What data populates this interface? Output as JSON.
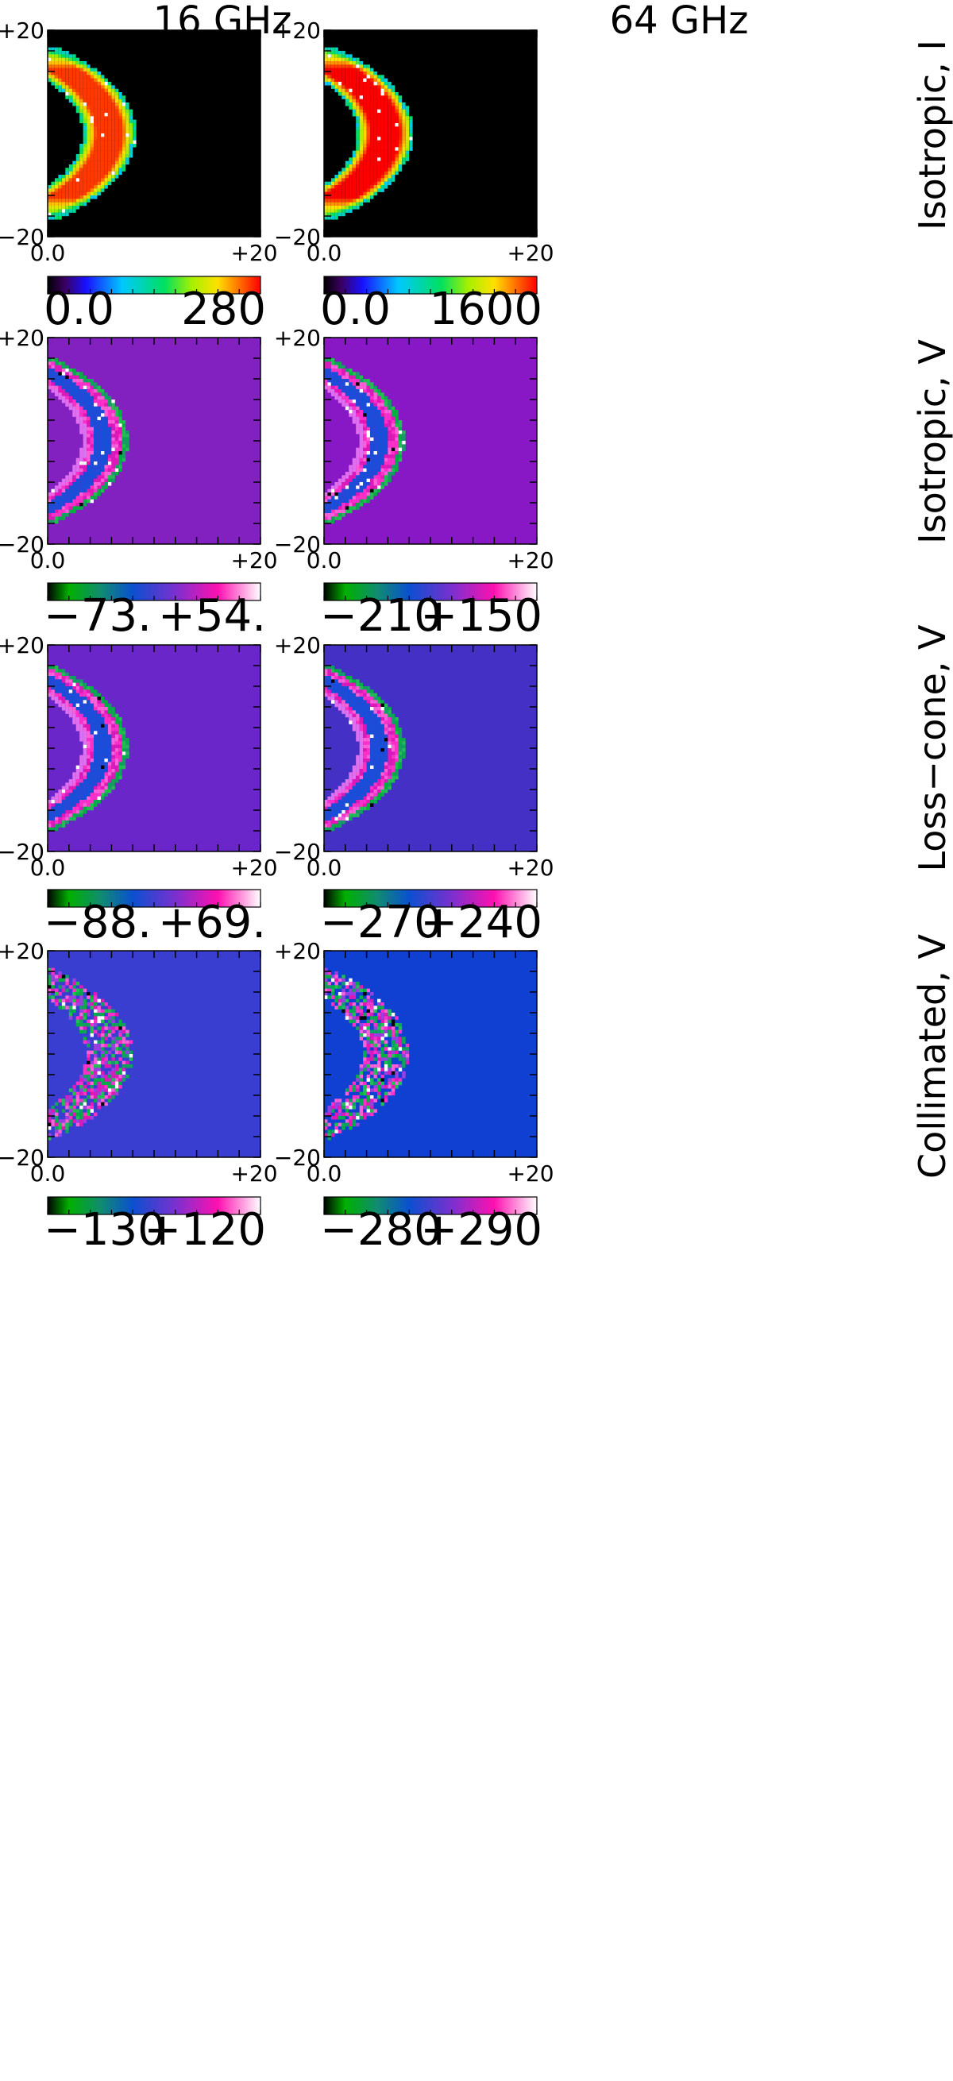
{
  "columns": [
    "16 GHz",
    "64 GHz"
  ],
  "chart_data": [
    {
      "type": "heatmap",
      "row": "Isotropic, I",
      "column": "16 GHz",
      "x_ticks": [
        "0.0",
        "+20"
      ],
      "y_ticks": [
        "+20",
        "−20"
      ],
      "x_range": [
        0,
        20
      ],
      "y_range": [
        -20,
        20
      ],
      "colorbar": {
        "scale": "rainbow",
        "min_label": "0.0",
        "max_label": "280",
        "min": 0,
        "max": 280
      },
      "background_color": "#000000",
      "features": {
        "arc_type": "intensity",
        "inner": 2.5,
        "outer": 5.0,
        "peak_fraction": 0.95
      }
    },
    {
      "type": "heatmap",
      "row": "Isotropic, I",
      "column": "64 GHz",
      "x_ticks": [
        "0.0",
        "+20"
      ],
      "y_ticks": [
        "+20",
        "−20"
      ],
      "x_range": [
        0,
        20
      ],
      "y_range": [
        -20,
        20
      ],
      "colorbar": {
        "scale": "rainbow",
        "min_label": "0.0",
        "max_label": "1600",
        "min": 0,
        "max": 1600
      },
      "background_color": "#000000",
      "features": {
        "arc_type": "intensity",
        "inner": 2.7,
        "outer": 5.2,
        "peak_fraction": 1.0
      }
    },
    {
      "type": "heatmap",
      "row": "Isotropic, V",
      "column": "16 GHz",
      "x_ticks": [
        "0.0",
        "+20"
      ],
      "y_ticks": [
        "+20",
        "−20"
      ],
      "x_range": [
        0,
        20
      ],
      "y_range": [
        -20,
        20
      ],
      "colorbar": {
        "scale": "green-blue-magenta-white",
        "min_label": "−73.",
        "max_label": "+54.",
        "min": -73,
        "max": 54
      },
      "background_color": "#8220c0",
      "features": {
        "arc_type": "banded"
      }
    },
    {
      "type": "heatmap",
      "row": "Isotropic, V",
      "column": "64 GHz",
      "x_ticks": [
        "0.0",
        "+20"
      ],
      "y_ticks": [
        "+20",
        "−20"
      ],
      "x_range": [
        0,
        20
      ],
      "y_range": [
        -20,
        20
      ],
      "colorbar": {
        "scale": "green-blue-magenta-white",
        "min_label": "−210",
        "max_label": "+150",
        "min": -210,
        "max": 150
      },
      "background_color": "#8818c6",
      "features": {
        "arc_type": "banded"
      }
    },
    {
      "type": "heatmap",
      "row": "Loss−cone, V",
      "column": "16 GHz",
      "x_ticks": [
        "0.0",
        "+20"
      ],
      "y_ticks": [
        "+20",
        "−20"
      ],
      "x_range": [
        0,
        20
      ],
      "y_range": [
        -20,
        20
      ],
      "colorbar": {
        "scale": "green-blue-magenta-white",
        "min_label": "−88.",
        "max_label": "+69.",
        "min": -88,
        "max": 69
      },
      "background_color": "#6a26c8",
      "features": {
        "arc_type": "banded"
      }
    },
    {
      "type": "heatmap",
      "row": "Loss−cone, V",
      "column": "64 GHz",
      "x_ticks": [
        "0.0",
        "+20"
      ],
      "y_ticks": [
        "+20",
        "−20"
      ],
      "x_range": [
        0,
        20
      ],
      "y_range": [
        -20,
        20
      ],
      "colorbar": {
        "scale": "green-blue-magenta-white",
        "min_label": "−270",
        "max_label": "+240",
        "min": -270,
        "max": 240
      },
      "background_color": "#4430c4",
      "features": {
        "arc_type": "banded"
      }
    },
    {
      "type": "heatmap",
      "row": "Collimated, V",
      "column": "16 GHz",
      "x_ticks": [
        "0.0",
        "+20"
      ],
      "y_ticks": [
        "+20",
        "−20"
      ],
      "x_range": [
        0,
        20
      ],
      "y_range": [
        -20,
        20
      ],
      "colorbar": {
        "scale": "green-blue-magenta-white",
        "min_label": "−130",
        "max_label": "+120",
        "min": -130,
        "max": 120
      },
      "background_color": "#3a3ed0",
      "features": {
        "arc_type": "speckled"
      }
    },
    {
      "type": "heatmap",
      "row": "Collimated, V",
      "column": "64 GHz",
      "x_ticks": [
        "0.0",
        "+20"
      ],
      "y_ticks": [
        "+20",
        "−20"
      ],
      "x_range": [
        0,
        20
      ],
      "y_range": [
        -20,
        20
      ],
      "colorbar": {
        "scale": "green-blue-magenta-white",
        "min_label": "−280",
        "max_label": "+290",
        "min": -280,
        "max": 290
      },
      "background_color": "#1040d2",
      "features": {
        "arc_type": "speckled"
      }
    }
  ]
}
